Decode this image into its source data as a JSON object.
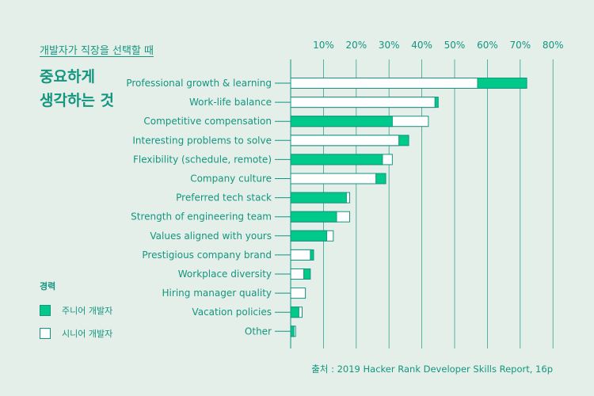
{
  "header": {
    "kicker": "개발자가 직장을 선택할 때",
    "headline_line1": "중요하게",
    "headline_line2": "생각하는 것"
  },
  "legend": {
    "title": "경력",
    "junior_label": "주니어 개발자",
    "senior_label": "시니어 개발자"
  },
  "source": "출처 : 2019 Hacker Rank Developer Skills Report, 16p",
  "colors": {
    "junior": "#00c98a",
    "senior": "#ffffff",
    "text": "#13957f",
    "grid": "#13957f",
    "background": "#e5efe9"
  },
  "chart_data": {
    "type": "bar",
    "orientation": "horizontal",
    "xlim": [
      0,
      80
    ],
    "xticks": [
      "10%",
      "20%",
      "30%",
      "40%",
      "50%",
      "60%",
      "70%",
      "80%"
    ],
    "tick_values": [
      10,
      20,
      30,
      40,
      50,
      60,
      70,
      80
    ],
    "grid": true,
    "categories": [
      "Professional growth & learning",
      "Work-life balance",
      "Competitive compensation",
      "Interesting problems to solve",
      "Flexibility (schedule, remote)",
      "Company culture",
      "Preferred tech stack",
      "Strength of engineering team",
      "Values aligned with yours",
      "Prestigious company brand",
      "Workplace diversity",
      "Hiring manager quality",
      "Vacation policies",
      "Other"
    ],
    "series": [
      {
        "name": "주니어 개발자",
        "values": [
          72,
          45,
          31,
          36,
          28,
          29,
          17,
          14,
          11,
          7,
          6,
          0,
          2.5,
          1
        ]
      },
      {
        "name": "시니어 개발자",
        "values": [
          57,
          44,
          42,
          33,
          31,
          26,
          18,
          18,
          13,
          6,
          4,
          4.5,
          3.5,
          1.5
        ]
      }
    ]
  }
}
